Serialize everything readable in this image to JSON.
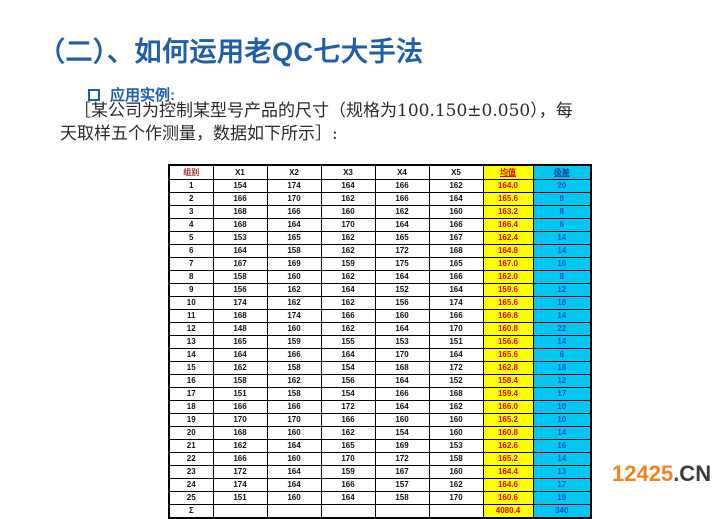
{
  "slide": {
    "title": "（二）、如何运用老QC七大手法",
    "section_label": "应用实例:",
    "body_line1": "［某公司为控制某型号产品的尺寸（规格为100.150±0.050），每",
    "body_line2": "天取样五个作测量，数据如下所示］:"
  },
  "table": {
    "headers": [
      "组别",
      "X1",
      "X2",
      "X3",
      "X4",
      "X5",
      "均值",
      "极差"
    ],
    "rows": [
      {
        "group": "1",
        "x": [
          "154",
          "174",
          "164",
          "166",
          "162"
        ],
        "mean": "164.0",
        "range": "20"
      },
      {
        "group": "2",
        "x": [
          "166",
          "170",
          "162",
          "166",
          "164"
        ],
        "mean": "165.6",
        "range": "8"
      },
      {
        "group": "3",
        "x": [
          "168",
          "166",
          "160",
          "162",
          "160"
        ],
        "mean": "163.2",
        "range": "8"
      },
      {
        "group": "4",
        "x": [
          "168",
          "164",
          "170",
          "164",
          "166"
        ],
        "mean": "166.4",
        "range": "6"
      },
      {
        "group": "5",
        "x": [
          "153",
          "165",
          "162",
          "165",
          "167"
        ],
        "mean": "162.4",
        "range": "14"
      },
      {
        "group": "6",
        "x": [
          "164",
          "158",
          "162",
          "172",
          "168"
        ],
        "mean": "164.8",
        "range": "14"
      },
      {
        "group": "7",
        "x": [
          "167",
          "169",
          "159",
          "175",
          "165"
        ],
        "mean": "167.0",
        "range": "16"
      },
      {
        "group": "8",
        "x": [
          "158",
          "160",
          "162",
          "164",
          "166"
        ],
        "mean": "162.0",
        "range": "8"
      },
      {
        "group": "9",
        "x": [
          "156",
          "162",
          "164",
          "152",
          "164"
        ],
        "mean": "159.6",
        "range": "12"
      },
      {
        "group": "10",
        "x": [
          "174",
          "162",
          "162",
          "156",
          "174"
        ],
        "mean": "165.6",
        "range": "18"
      },
      {
        "group": "11",
        "x": [
          "168",
          "174",
          "166",
          "160",
          "166"
        ],
        "mean": "166.8",
        "range": "14"
      },
      {
        "group": "12",
        "x": [
          "148",
          "160",
          "162",
          "164",
          "170"
        ],
        "mean": "160.8",
        "range": "22"
      },
      {
        "group": "13",
        "x": [
          "165",
          "159",
          "155",
          "153",
          "151"
        ],
        "mean": "156.6",
        "range": "14"
      },
      {
        "group": "14",
        "x": [
          "164",
          "166",
          "164",
          "170",
          "164"
        ],
        "mean": "165.6",
        "range": "6"
      },
      {
        "group": "15",
        "x": [
          "162",
          "158",
          "154",
          "168",
          "172"
        ],
        "mean": "162.8",
        "range": "18"
      },
      {
        "group": "16",
        "x": [
          "158",
          "162",
          "156",
          "164",
          "152"
        ],
        "mean": "158.4",
        "range": "12"
      },
      {
        "group": "17",
        "x": [
          "151",
          "158",
          "154",
          "166",
          "168"
        ],
        "mean": "159.4",
        "range": "17"
      },
      {
        "group": "18",
        "x": [
          "166",
          "166",
          "172",
          "164",
          "162"
        ],
        "mean": "166.0",
        "range": "10"
      },
      {
        "group": "19",
        "x": [
          "170",
          "170",
          "166",
          "160",
          "160"
        ],
        "mean": "165.2",
        "range": "10"
      },
      {
        "group": "20",
        "x": [
          "168",
          "160",
          "162",
          "154",
          "160"
        ],
        "mean": "160.8",
        "range": "14"
      },
      {
        "group": "21",
        "x": [
          "162",
          "164",
          "165",
          "169",
          "153"
        ],
        "mean": "162.6",
        "range": "16"
      },
      {
        "group": "22",
        "x": [
          "166",
          "160",
          "170",
          "172",
          "158"
        ],
        "mean": "165.2",
        "range": "14"
      },
      {
        "group": "23",
        "x": [
          "172",
          "164",
          "159",
          "167",
          "160"
        ],
        "mean": "164.4",
        "range": "13"
      },
      {
        "group": "24",
        "x": [
          "174",
          "164",
          "166",
          "157",
          "162"
        ],
        "mean": "164.6",
        "range": "17"
      },
      {
        "group": "25",
        "x": [
          "151",
          "160",
          "164",
          "158",
          "170"
        ],
        "mean": "160.6",
        "range": "19"
      }
    ],
    "sigma_row": {
      "group": "Σ",
      "x": [
        "",
        "",
        "",
        "",
        ""
      ],
      "mean": "4080.4",
      "range": "340"
    }
  },
  "watermark": {
    "number": "12425",
    "suffix": ".CN"
  },
  "colors": {
    "title_blue": "#1c5fad",
    "mean_bg": "#ffff00",
    "mean_text": "#e80000",
    "range_bg": "#00c8f2",
    "range_text": "#0050c8",
    "group_header_text": "#a03028",
    "watermark_orange": "#f58220",
    "watermark_dark": "#3c3c3c"
  }
}
